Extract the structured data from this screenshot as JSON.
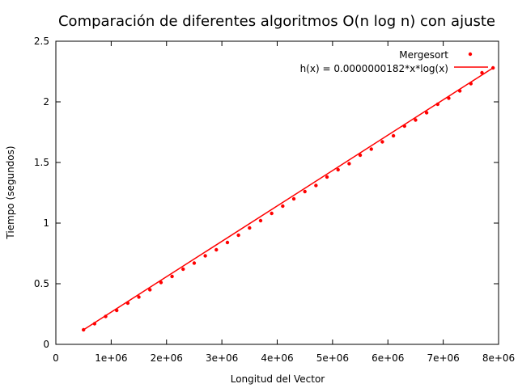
{
  "chart_data": {
    "type": "scatter",
    "title": "Comparación de diferentes algoritmos O(n log n) con ajuste",
    "xlabel": "Longitud del Vector",
    "ylabel": "Tiempo (segundos)",
    "xlim": [
      0,
      8000000
    ],
    "ylim": [
      0,
      2.5
    ],
    "xticks": [
      0,
      1000000,
      2000000,
      3000000,
      4000000,
      5000000,
      6000000,
      7000000,
      8000000
    ],
    "xtick_labels": [
      "0",
      "1e+06",
      "2e+06",
      "3e+06",
      "4e+06",
      "5e+06",
      "6e+06",
      "7e+06",
      "8e+06"
    ],
    "yticks": [
      0,
      0.5,
      1,
      1.5,
      2,
      2.5
    ],
    "ytick_labels": [
      "0",
      "0.5",
      "1",
      "1.5",
      "2",
      "2.5"
    ],
    "grid": false,
    "legend_position": "top-right",
    "colors": {
      "series": "#ff0000",
      "axis": "#000000"
    },
    "series": [
      {
        "name": "Mergesort",
        "kind": "points",
        "x": [
          500000,
          700000,
          900000,
          1100000,
          1300000,
          1500000,
          1700000,
          1900000,
          2100000,
          2300000,
          2500000,
          2700000,
          2900000,
          3100000,
          3300000,
          3500000,
          3700000,
          3900000,
          4100000,
          4300000,
          4500000,
          4700000,
          4900000,
          5100000,
          5300000,
          5500000,
          5700000,
          5900000,
          6100000,
          6300000,
          6500000,
          6700000,
          6900000,
          7100000,
          7300000,
          7500000,
          7700000,
          7900000
        ],
        "y": [
          0.12,
          0.17,
          0.23,
          0.28,
          0.34,
          0.39,
          0.45,
          0.51,
          0.56,
          0.62,
          0.67,
          0.73,
          0.78,
          0.84,
          0.9,
          0.96,
          1.02,
          1.08,
          1.14,
          1.2,
          1.26,
          1.31,
          1.38,
          1.44,
          1.49,
          1.56,
          1.61,
          1.67,
          1.72,
          1.8,
          1.85,
          1.91,
          1.98,
          2.03,
          2.09,
          2.15,
          2.24,
          2.28
        ]
      },
      {
        "name": "h(x) = 0.0000000182*x*log(x)",
        "kind": "line",
        "x": [
          500000,
          7900000
        ],
        "y": [
          0.12,
          2.28
        ]
      }
    ]
  }
}
